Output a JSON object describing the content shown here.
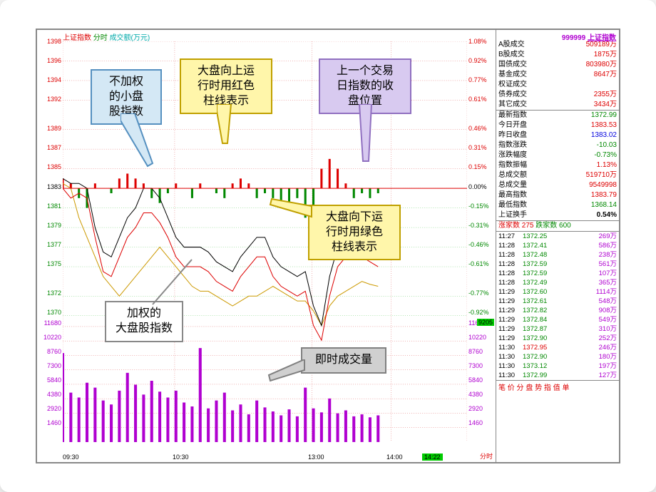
{
  "index_name": "上证指数",
  "header_label_1": "上证指数",
  "header_label_2": "分时",
  "header_label_3": "成交额(万元)",
  "header_ticker": "999999",
  "chart": {
    "y_left_price": [
      1398,
      1396,
      1394,
      1392,
      1389,
      1387,
      1385,
      1383,
      1381,
      1379,
      1377,
      1375,
      1372,
      1370
    ],
    "y_left_volume": [
      11680,
      10220,
      8760,
      7300,
      5840,
      4380,
      2920,
      1460
    ],
    "y_right_pct": [
      "1.08%",
      "0.92%",
      "0.77%",
      "0.61%",
      "0.46%",
      "0.31%",
      "0.15%",
      "0.00%",
      "-0.15%",
      "-0.31%",
      "-0.46%",
      "-0.61%",
      "-0.77%",
      "-0.92%"
    ],
    "y_right_vol": [
      11680,
      10220,
      8760,
      7300,
      5840,
      4380,
      2920,
      1460
    ],
    "x_ticks": [
      "09:30",
      "10:30",
      "13:00",
      "14:00"
    ],
    "x_clock": "14:22",
    "right_label": "分时",
    "yellow": [
      1383.5,
      1383,
      1380,
      1378,
      1376,
      1374,
      1373,
      1372,
      1373,
      1374,
      1375,
      1376,
      1377,
      1376,
      1375,
      1374,
      1373,
      1372.5,
      1372.5,
      1372,
      1371.5,
      1371,
      1371.5,
      1372,
      1372,
      1372.5,
      1373,
      1372.5,
      1372,
      1371.5,
      1371.5,
      1370.5,
      1369,
      1371,
      1372,
      1372.5,
      1373,
      1373.5,
      1373.2,
      1373
    ],
    "black": [
      1384,
      1383.5,
      1383.5,
      1383,
      1379,
      1376.5,
      1376,
      1378,
      1380,
      1381,
      1383,
      1383,
      1382,
      1380,
      1378,
      1377,
      1377,
      1377,
      1376.5,
      1375.5,
      1375,
      1374.5,
      1376,
      1377,
      1378,
      1378,
      1376,
      1375,
      1374.5,
      1374,
      1374.5,
      1371,
      1369,
      1374,
      1377,
      1378,
      1378.5,
      1378,
      1377.5,
      1377
    ],
    "red_line": [
      1383,
      1382,
      1382.5,
      1382,
      1378,
      1374.5,
      1374,
      1376,
      1378,
      1379,
      1380.5,
      1380.5,
      1379.5,
      1378,
      1376,
      1375,
      1375,
      1375,
      1374.5,
      1373.5,
      1373,
      1372.5,
      1374,
      1375,
      1376,
      1376,
      1374,
      1373,
      1372.5,
      1372,
      1372.5,
      1369,
      1367.5,
      1372,
      1375,
      1376,
      1376.5,
      1376,
      1375.5,
      1375
    ],
    "volume": [
      9000,
      5000,
      4500,
      6000,
      5500,
      4200,
      3800,
      5200,
      7000,
      5800,
      4800,
      6200,
      5100,
      4500,
      5200,
      4000,
      3600,
      9500,
      3400,
      4200,
      5000,
      3200,
      3800,
      2800,
      4200,
      3500,
      3100,
      2700,
      3300,
      2600,
      5500,
      3400,
      3000,
      4400,
      2900,
      3200,
      2600,
      2800,
      2500,
      2700
    ],
    "bars": [
      1,
      0.5,
      -1,
      -2,
      0.5,
      0,
      -0.5,
      1,
      1.5,
      1,
      0.5,
      -1,
      -1.5,
      -0.5,
      0.5,
      0,
      -1,
      0.5,
      0,
      -0.5,
      -1,
      0.5,
      1,
      0.5,
      -1,
      -0.5,
      -1,
      -2,
      -1.5,
      -1,
      -3,
      -4,
      2,
      3,
      2,
      0.5,
      -1,
      -0.5,
      -1,
      -0.5
    ],
    "highlight_volume": "9205"
  },
  "side": {
    "trading_stats": [
      {
        "l": "A股成交",
        "v": "509189万",
        "c": "red"
      },
      {
        "l": "B股成交",
        "v": "1875万",
        "c": "red"
      },
      {
        "l": "国债成交",
        "v": "803980万",
        "c": "red"
      },
      {
        "l": "基金成交",
        "v": "8647万",
        "c": "red"
      },
      {
        "l": "权证成交",
        "v": "",
        "c": "red"
      },
      {
        "l": "债券成交",
        "v": "2355万",
        "c": "red"
      },
      {
        "l": "其它成交",
        "v": "3434万",
        "c": "red"
      }
    ],
    "index_stats": [
      {
        "l": "最新指数",
        "v": "1372.99",
        "c": "green"
      },
      {
        "l": "今日开盘",
        "v": "1383.53",
        "c": "red"
      },
      {
        "l": "昨日收盘",
        "v": "1383.02",
        "c": "blue"
      },
      {
        "l": "指数涨跌",
        "v": "-10.03",
        "c": "green"
      },
      {
        "l": "涨跌幅度",
        "v": "-0.73%",
        "c": "green"
      },
      {
        "l": "指数振幅",
        "v": "1.13%",
        "c": "red"
      },
      {
        "l": "总成交额",
        "v": "519710万",
        "c": "red"
      },
      {
        "l": "总成交量",
        "v": "9549998",
        "c": "red"
      },
      {
        "l": "最高指数",
        "v": "1383.79",
        "c": "red"
      },
      {
        "l": "最低指数",
        "v": "1368.14",
        "c": "green"
      },
      {
        "l": "上证换手",
        "v": "0.54%",
        "c": "black"
      }
    ],
    "up_label": "涨家数",
    "up_count": "275",
    "down_label": "跌家数",
    "down_count": "600",
    "ticks": [
      {
        "t": "11:27",
        "p": "1372.25",
        "c": "green",
        "v": "269万"
      },
      {
        "t": "11:28",
        "p": "1372.41",
        "c": "green",
        "v": "586万"
      },
      {
        "t": "11:28",
        "p": "1372.48",
        "c": "green",
        "v": "238万"
      },
      {
        "t": "11:28",
        "p": "1372.59",
        "c": "green",
        "v": "561万"
      },
      {
        "t": "11:28",
        "p": "1372.59",
        "c": "green",
        "v": "107万"
      },
      {
        "t": "11:28",
        "p": "1372.49",
        "c": "green",
        "v": "365万"
      },
      {
        "t": "11:29",
        "p": "1372.60",
        "c": "green",
        "v": "1114万"
      },
      {
        "t": "11:29",
        "p": "1372.61",
        "c": "green",
        "v": "548万"
      },
      {
        "t": "11:29",
        "p": "1372.82",
        "c": "green",
        "v": "908万"
      },
      {
        "t": "11:29",
        "p": "1372.84",
        "c": "green",
        "v": "549万"
      },
      {
        "t": "11:29",
        "p": "1372.87",
        "c": "green",
        "v": "310万"
      },
      {
        "t": "11:29",
        "p": "1372.90",
        "c": "green",
        "v": "252万"
      },
      {
        "t": "11:30",
        "p": "1372.95",
        "c": "red",
        "v": "246万"
      },
      {
        "t": "11:30",
        "p": "1372.90",
        "c": "green",
        "v": "180万"
      },
      {
        "t": "11:30",
        "p": "1373.12",
        "c": "green",
        "v": "197万"
      },
      {
        "t": "11:30",
        "p": "1372.99",
        "c": "green",
        "v": "127万"
      }
    ],
    "tabs": "笔 价 分 盘 势 指 值 单"
  },
  "callouts": {
    "small_cap": "不加权\n的小盘\n股指数",
    "red_bars": "大盘向上运\n行时用红色\n柱线表示",
    "prev_close": "上一个交易\n日指数的收\n盘位置",
    "green_bars": "大盘向下运\n行时用绿色\n柱线表示",
    "weighted": "加权的\n大盘股指数",
    "volume": "即时成交量"
  }
}
